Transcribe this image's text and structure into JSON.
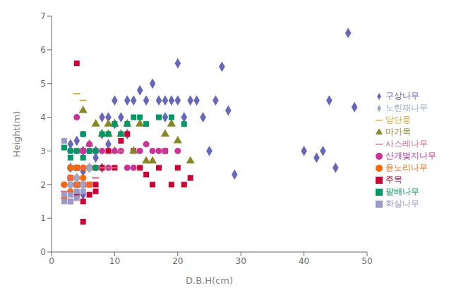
{
  "chart_data": {
    "type": "scatter",
    "xlabel": "D.B.H(cm)",
    "ylabel": "Height(m)",
    "xlim": [
      0,
      50
    ],
    "ylim": [
      0,
      7
    ],
    "xticks": [
      0,
      10,
      20,
      30,
      40,
      50
    ],
    "yticks": [
      0,
      1,
      2,
      3,
      4,
      5,
      6,
      7
    ],
    "grid": false,
    "legend": "right",
    "series": [
      {
        "name": "구상나무",
        "color": "#6666BB",
        "marker": "diamond",
        "x": [
          3,
          3,
          4,
          5,
          5,
          5,
          6,
          7,
          7,
          8,
          8,
          8,
          9,
          9,
          10,
          10,
          11,
          12,
          12,
          13,
          14,
          15,
          16,
          17,
          18,
          18,
          19,
          20,
          20,
          21,
          22,
          23,
          24,
          25,
          26,
          27,
          28,
          29,
          40,
          42,
          43,
          44,
          45,
          47,
          48
        ],
        "values": [
          3.2,
          2.5,
          3.3,
          2.4,
          3.0,
          1.7,
          2.5,
          2.8,
          3.0,
          2.5,
          3.5,
          4.0,
          3.2,
          4.0,
          3.8,
          4.5,
          4.0,
          4.5,
          3.5,
          4.5,
          4.8,
          4.5,
          5.0,
          4.5,
          4.0,
          4.5,
          4.5,
          5.6,
          4.5,
          4.0,
          4.5,
          4.5,
          4.0,
          3.0,
          4.5,
          5.5,
          4.2,
          2.3,
          3.0,
          2.8,
          3.0,
          4.5,
          2.5,
          6.5,
          4.3
        ]
      },
      {
        "name": "주목",
        "color": "#CC0033",
        "marker": "square",
        "x": [
          3,
          3,
          4,
          4,
          4,
          4,
          5,
          5,
          5,
          5,
          6,
          6,
          7,
          7,
          8,
          9,
          10,
          11,
          12,
          13,
          14,
          15,
          16,
          17,
          18,
          19,
          20,
          21,
          22
        ],
        "values": [
          1.5,
          2.2,
          5.6,
          1.7,
          2.0,
          2.5,
          0.9,
          2.0,
          1.5,
          3.0,
          2.0,
          1.7,
          1.8,
          2.0,
          2.5,
          3.0,
          2.5,
          3.3,
          3.5,
          3.0,
          2.5,
          2.3,
          2.0,
          2.5,
          3.0,
          2.0,
          2.5,
          2.0,
          2.2
        ]
      },
      {
        "name": "마가목",
        "color": "#888822",
        "marker": "triangle",
        "x": [
          5,
          6,
          7,
          8,
          9,
          9,
          10,
          10,
          11,
          12,
          13,
          14,
          15,
          16,
          18,
          19,
          20,
          22
        ],
        "values": [
          4.2,
          3.2,
          3.8,
          3.5,
          3.8,
          3.5,
          3.0,
          3.8,
          3.5,
          3.8,
          3.0,
          3.8,
          2.7,
          2.7,
          3.5,
          3.8,
          3.3,
          2.7
        ]
      },
      {
        "name": "산개벚지나무",
        "color": "#CC3399",
        "marker": "circle",
        "x": [
          2,
          3,
          3,
          3,
          4,
          4,
          4,
          5,
          5,
          5,
          5,
          6,
          6,
          7,
          7,
          7,
          8,
          9,
          10,
          11,
          12,
          13,
          14,
          15,
          16,
          17,
          18,
          20
        ],
        "values": [
          2.0,
          2.2,
          3.0,
          2.5,
          2.5,
          3.0,
          4.0,
          3.0,
          2.5,
          3.5,
          3.0,
          3.0,
          3.2,
          3.0,
          2.5,
          2.5,
          3.0,
          2.5,
          3.0,
          3.0,
          2.5,
          2.5,
          3.0,
          3.2,
          3.0,
          3.0,
          3.0,
          3.0
        ]
      },
      {
        "name": "팥배나무",
        "color": "#009966",
        "marker": "square",
        "x": [
          2,
          3,
          3,
          3,
          4,
          4,
          4,
          5,
          5,
          6,
          6,
          7,
          7,
          8,
          9,
          10,
          11,
          12,
          13,
          14,
          15,
          17,
          19,
          21
        ],
        "values": [
          3.1,
          3.0,
          2.8,
          2.5,
          2.5,
          3.0,
          2.0,
          2.8,
          3.5,
          3.0,
          2.5,
          2.5,
          3.0,
          3.5,
          3.5,
          3.8,
          3.5,
          3.8,
          4.0,
          4.0,
          3.8,
          4.0,
          4.0,
          3.8
        ]
      },
      {
        "name": "윤노리나무",
        "color": "#FF6600",
        "marker": "circle",
        "x": [
          2,
          2,
          3,
          3,
          3,
          3,
          4,
          4,
          4,
          4,
          5,
          5,
          5,
          6,
          6
        ],
        "values": [
          1.6,
          2.0,
          2.0,
          2.5,
          1.8,
          2.2,
          2.0,
          2.5,
          2.2,
          2.0,
          2.0,
          2.5,
          2.2,
          2.0,
          2.5
        ]
      },
      {
        "name": "화살나무",
        "color": "#9999CC",
        "marker": "square",
        "x": [
          2,
          2,
          2,
          3,
          3,
          3,
          4,
          4,
          5
        ],
        "values": [
          1.7,
          1.5,
          3.3,
          2.0,
          1.7,
          1.5,
          1.8,
          1.6,
          1.8
        ]
      },
      {
        "name": "사스레나무",
        "color": "#DD6688",
        "marker": "dash",
        "x": [
          2,
          3,
          3,
          4,
          5,
          6,
          7,
          8,
          9,
          10,
          11
        ],
        "values": [
          1.8,
          2.0,
          2.2,
          2.0,
          2.5,
          2.0,
          2.2,
          2.5,
          2.5,
          2.5,
          3.0
        ]
      },
      {
        "name": "당단풍",
        "color": "#DDAA33",
        "marker": "dash",
        "x": [
          4,
          5
        ],
        "values": [
          4.7,
          4.5
        ]
      },
      {
        "name": "노린재나무",
        "color": "#99AACC",
        "marker": "diamond",
        "x": [
          3,
          4,
          5,
          6
        ],
        "values": [
          2.0,
          2.2,
          2.0,
          2.5
        ]
      }
    ]
  }
}
